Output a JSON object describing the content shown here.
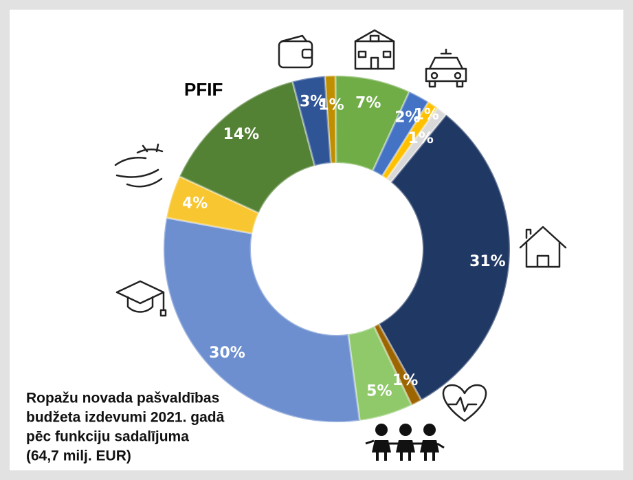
{
  "chart_data": {
    "type": "donut",
    "title_lines": [
      "Ropažu novada pašvaldības",
      "budžeta izdevumi 2021. gadā",
      "pēc funkciju sadalījuma",
      "(64,7 milj. EUR)"
    ],
    "annotation": "PFIF",
    "values": [
      1,
      7,
      2,
      1,
      1,
      31,
      1,
      5,
      30,
      4,
      14,
      3
    ],
    "value_labels": [
      "1%",
      "7%",
      "2%",
      "1%",
      "1%",
      "31%",
      "1%",
      "5%",
      "30%",
      "4%",
      "14%",
      "3%"
    ],
    "colors": [
      "#bf8f00",
      "#70ad47",
      "#4472c4",
      "#ffc000",
      "#d9d9d9",
      "#203864",
      "#9c6500",
      "#8fc96a",
      "#6d8fd0",
      "#f8c630",
      "#548235",
      "#2f5597"
    ]
  }
}
